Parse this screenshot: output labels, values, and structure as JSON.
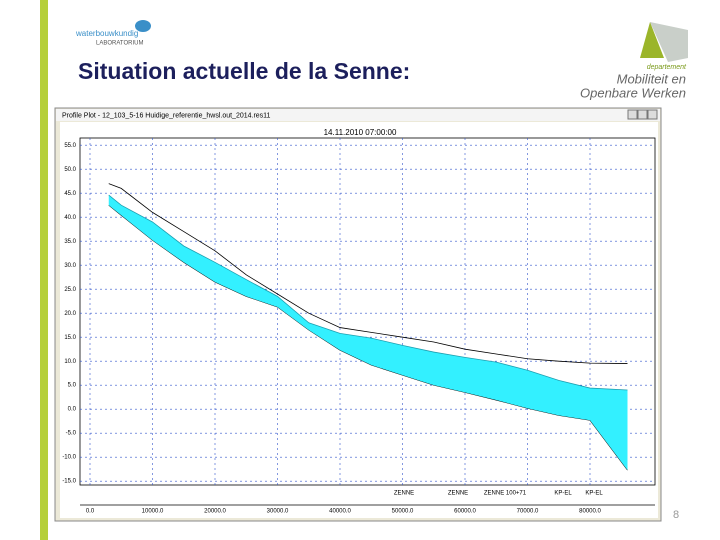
{
  "slide": {
    "title": "Situation actuelle de la Senne:",
    "logo_line1": "waterbouwkundig",
    "logo_line2": "LABORATORIUM",
    "dept": "departement",
    "dept_line1": "Mobiliteit en",
    "dept_line2": "Openbare Werken",
    "page_number": "8"
  },
  "chart_data": {
    "type": "line",
    "window_title": "Profile Plot - 12_103_5-16 Huidige_referentie_hwsl.out_2014.res11",
    "title": "14.11.2010 07:00:00",
    "x": [
      3000,
      5000,
      10000,
      15000,
      20000,
      25000,
      30000,
      35000,
      40000,
      45000,
      50000,
      55000,
      60000,
      65000,
      70000,
      75000,
      80000,
      86000
    ],
    "series": [
      {
        "color": "#000000",
        "values": [
          42.5,
          40.4,
          35.2,
          30.6,
          26.5,
          23.5,
          21.3,
          16.5,
          12.3,
          9.2,
          7.1,
          5,
          3.5,
          1.9,
          0.2,
          -1.3,
          -2.3,
          -12.7
        ]
      },
      {
        "color": "#1e9fb0",
        "fill": "#33f0ff",
        "values": [
          44.6,
          42.5,
          39,
          34,
          30.6,
          27,
          23.5,
          18,
          15.8,
          14.8,
          13.3,
          11.9,
          10.8,
          9.8,
          8.1,
          6,
          4.4,
          4
        ]
      },
      {
        "color": "#000000",
        "values": [
          47,
          46,
          41,
          37,
          33,
          28,
          24,
          20,
          17,
          16,
          15,
          14,
          12.5,
          11.5,
          10.5,
          10,
          9.6,
          9.5
        ]
      }
    ],
    "xlim": [
      -1600,
      90400
    ],
    "ylim": [
      -15.8,
      56.5
    ],
    "xticks": [
      {
        "value": 0,
        "label": "0.0"
      },
      {
        "value": 10000,
        "label": "10000.0"
      },
      {
        "value": 20000,
        "label": "20000.0"
      },
      {
        "value": 30000,
        "label": "30000.0"
      },
      {
        "value": 40000,
        "label": "40000.0"
      },
      {
        "value": 50000,
        "label": "50000.0"
      },
      {
        "value": 60000,
        "label": "60000.0"
      },
      {
        "value": 70000,
        "label": "70000.0"
      },
      {
        "value": 80000,
        "label": "80000.0"
      }
    ],
    "yticks": [
      {
        "value": -15,
        "label": "-15.0"
      },
      {
        "value": -10,
        "label": "-10.0"
      },
      {
        "value": -5,
        "label": "-5.0"
      },
      {
        "value": 0,
        "label": "0.0"
      },
      {
        "value": 5,
        "label": "5.0"
      },
      {
        "value": 10,
        "label": "10.0"
      },
      {
        "value": 15,
        "label": "15.0"
      },
      {
        "value": 20,
        "label": "20.0"
      },
      {
        "value": 25,
        "label": "25.0"
      },
      {
        "value": 30,
        "label": "30.0"
      },
      {
        "value": 35,
        "label": "35.0"
      },
      {
        "value": 40,
        "label": "40.0"
      },
      {
        "value": 45,
        "label": "45.0"
      },
      {
        "value": 50,
        "label": "50.0"
      },
      {
        "value": 55,
        "label": "55.0"
      }
    ],
    "grid": true,
    "bottom_labels": [
      "ZENNE",
      "ZENNE",
      "ZENNE 100+71",
      "KP-EL",
      "KP-EL"
    ]
  }
}
